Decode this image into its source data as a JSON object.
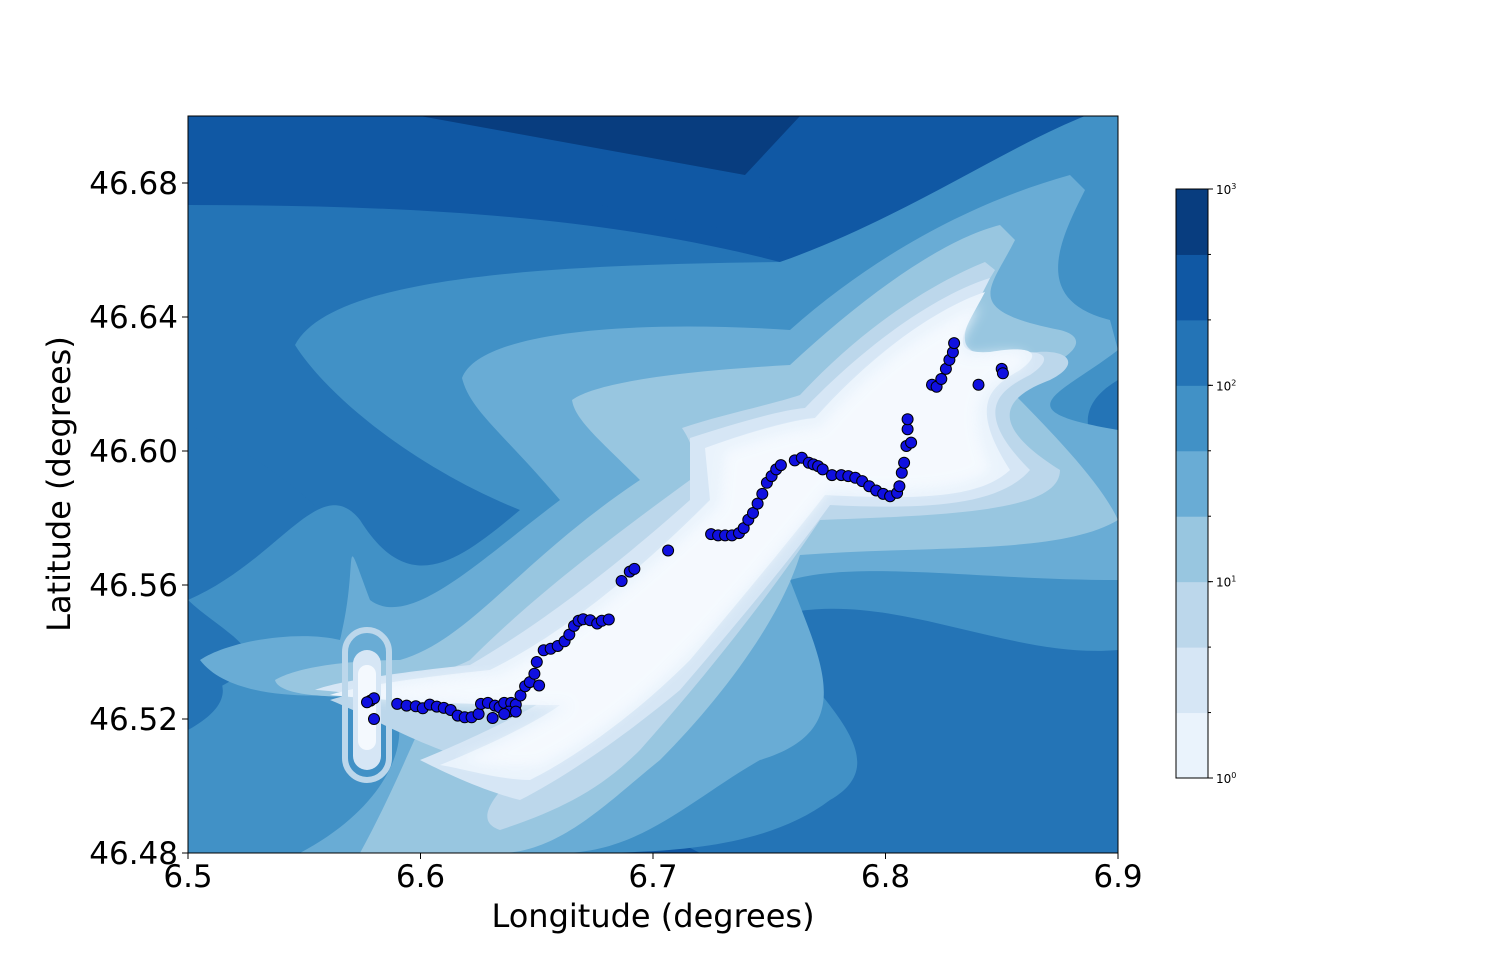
{
  "chart_data": {
    "type": "scatter",
    "title": "",
    "xlabel": "Longitude (degrees)",
    "ylabel": "Latitude (degrees)",
    "xlim": [
      6.5,
      6.9
    ],
    "ylim": [
      46.48,
      46.7
    ],
    "xticks": [
      6.5,
      6.6,
      6.7,
      6.8,
      6.9
    ],
    "xtick_labels": [
      "6.5",
      "6.6",
      "6.7",
      "6.8",
      "6.9"
    ],
    "yticks": [
      46.48,
      46.52,
      46.56,
      46.6,
      46.64,
      46.68
    ],
    "ytick_labels": [
      "46.48",
      "46.52",
      "46.56",
      "46.60",
      "46.64",
      "46.68"
    ],
    "grid": false,
    "background": "filled contour (Blues colormap, log scale), lighter near the track",
    "colormap": [
      "#f7fbff",
      "#deebf7",
      "#c6dbef",
      "#9ecae1",
      "#6baed6",
      "#4292c6",
      "#2171b5",
      "#08519c",
      "#08306b"
    ],
    "colorbar": {
      "scale": "log",
      "range": [
        1,
        1000
      ],
      "levels": 9,
      "tick_values": [
        1,
        10,
        100,
        1000
      ],
      "tick_labels": [
        {
          "base": "10",
          "exp": "0"
        },
        {
          "base": "10",
          "exp": "1"
        },
        {
          "base": "10",
          "exp": "2"
        },
        {
          "base": "10",
          "exp": "3"
        }
      ],
      "colors": [
        "#eaf3fc",
        "#d6e6f5",
        "#bcd7eb",
        "#98c6e0",
        "#69acd5",
        "#4191c6",
        "#2474b6",
        "#1058a4",
        "#083d7f"
      ]
    },
    "marker_color": "#1010e0",
    "marker_edge": "#000000",
    "series": [
      {
        "points": [
          [
            6.5785,
            46.5255
          ],
          [
            6.58,
            46.5262
          ],
          [
            6.577,
            46.525
          ],
          [
            6.58,
            46.52
          ],
          [
            6.59,
            46.5245
          ],
          [
            6.594,
            46.524
          ],
          [
            6.598,
            46.5238
          ],
          [
            6.601,
            46.5232
          ],
          [
            6.604,
            46.5243
          ],
          [
            6.607,
            46.5237
          ],
          [
            6.61,
            46.5233
          ],
          [
            6.613,
            46.5227
          ],
          [
            6.616,
            46.521
          ],
          [
            6.619,
            46.5205
          ],
          [
            6.622,
            46.5205
          ],
          [
            6.625,
            46.5215
          ],
          [
            6.626,
            46.5245
          ],
          [
            6.629,
            46.5248
          ],
          [
            6.632,
            46.524
          ],
          [
            6.634,
            46.5235
          ],
          [
            6.636,
            46.5248
          ],
          [
            6.639,
            46.5248
          ],
          [
            6.641,
            46.5243
          ],
          [
            6.638,
            46.5222
          ],
          [
            6.641,
            46.5222
          ],
          [
            6.631,
            46.5203
          ],
          [
            6.636,
            46.5215
          ],
          [
            6.643,
            46.527
          ],
          [
            6.645,
            46.5298
          ],
          [
            6.647,
            46.531
          ],
          [
            6.649,
            46.5335
          ],
          [
            6.65,
            46.537
          ],
          [
            6.651,
            46.53
          ],
          [
            6.653,
            46.5405
          ],
          [
            6.656,
            46.541
          ],
          [
            6.659,
            46.5418
          ],
          [
            6.662,
            46.5432
          ],
          [
            6.664,
            46.5452
          ],
          [
            6.666,
            46.5478
          ],
          [
            6.668,
            46.5493
          ],
          [
            6.67,
            46.5498
          ],
          [
            6.673,
            46.5495
          ],
          [
            6.676,
            46.5485
          ],
          [
            6.678,
            46.5493
          ],
          [
            6.681,
            46.5497
          ],
          [
            6.6865,
            46.5612
          ],
          [
            6.69,
            46.564
          ],
          [
            6.692,
            46.5648
          ],
          [
            6.7065,
            46.5703
          ],
          [
            6.725,
            46.5752
          ],
          [
            6.728,
            46.5748
          ],
          [
            6.731,
            46.5748
          ],
          [
            6.734,
            46.5748
          ],
          [
            6.737,
            46.5755
          ],
          [
            6.739,
            46.577
          ],
          [
            6.741,
            46.5795
          ],
          [
            6.743,
            46.5815
          ],
          [
            6.745,
            46.5843
          ],
          [
            6.747,
            46.5872
          ],
          [
            6.749,
            46.5905
          ],
          [
            6.751,
            46.5925
          ],
          [
            6.753,
            46.5945
          ],
          [
            6.755,
            46.5958
          ],
          [
            6.761,
            46.5972
          ],
          [
            6.764,
            46.598
          ],
          [
            6.767,
            46.5965
          ],
          [
            6.769,
            46.596
          ],
          [
            6.771,
            46.5955
          ],
          [
            6.773,
            46.5945
          ],
          [
            6.777,
            46.5928
          ],
          [
            6.781,
            46.5928
          ],
          [
            6.784,
            46.5925
          ],
          [
            6.787,
            46.592
          ],
          [
            6.79,
            46.591
          ],
          [
            6.793,
            46.5895
          ],
          [
            6.796,
            46.5882
          ],
          [
            6.799,
            46.5872
          ],
          [
            6.802,
            46.5865
          ],
          [
            6.805,
            46.5875
          ],
          [
            6.806,
            46.5895
          ],
          [
            6.807,
            46.5935
          ],
          [
            6.808,
            46.5965
          ],
          [
            6.809,
            46.6015
          ],
          [
            6.8095,
            46.6065
          ],
          [
            6.8095,
            46.6095
          ],
          [
            6.811,
            46.6025
          ],
          [
            6.82,
            46.6198
          ],
          [
            6.822,
            46.6192
          ],
          [
            6.824,
            46.6215
          ],
          [
            6.826,
            46.6245
          ],
          [
            6.8275,
            46.6272
          ],
          [
            6.829,
            46.6295
          ],
          [
            6.8295,
            46.6322
          ],
          [
            6.84,
            46.6198
          ],
          [
            6.85,
            46.6245
          ],
          [
            6.8505,
            46.6232
          ]
        ]
      }
    ]
  }
}
